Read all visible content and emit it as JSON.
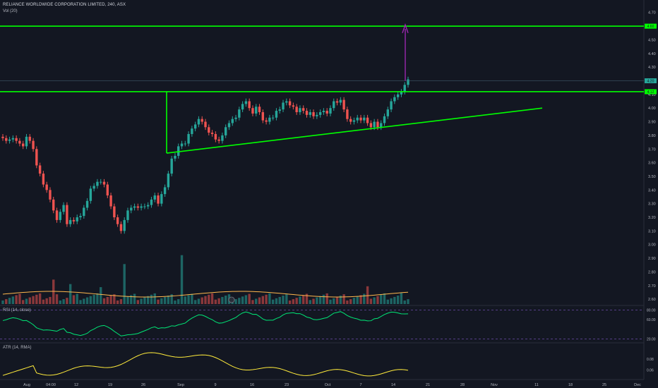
{
  "header": {
    "title": "RELIANCE WORLDWIDE CORPORATION LIMITED, 240, ASX",
    "indicator_vol": "Vol (20)",
    "indicator_rsi": "RSI (14, close)",
    "indicator_atr": "ATR (14, RMA)"
  },
  "colors": {
    "background": "#131722",
    "up": "#26a69a",
    "down": "#ef5350",
    "trendline": "#00ff00",
    "arrow": "#9c27b0",
    "rsi": "#00e676",
    "atr": "#ffeb3b",
    "vol_ma": "#ffb74d"
  },
  "chart_data": {
    "type": "candlestick",
    "y_axis_ticks": [
      "4.70",
      "4.50",
      "4.40",
      "4.30",
      "4.20",
      "4.10",
      "4.00",
      "3.90",
      "3.80",
      "3.70",
      "3.60",
      "3.50",
      "3.40",
      "3.30",
      "3.20",
      "3.10",
      "3.00",
      "2.90",
      "2.80",
      "2.70",
      "2.60"
    ],
    "price_badges": [
      "4.60",
      "4.20",
      "4.12"
    ],
    "ylim": [
      2.58,
      4.74
    ],
    "x_ticks": [
      "Aug",
      "04:00",
      "12",
      "19",
      "26",
      "Sep",
      "9",
      "16",
      "23",
      "Oct",
      "7",
      "14",
      "21",
      "28",
      "Nov",
      "11",
      "18",
      "25",
      "Dec"
    ],
    "close_prices": [
      3.78,
      3.76,
      3.77,
      3.78,
      3.76,
      3.74,
      3.72,
      3.79,
      3.76,
      3.7,
      3.58,
      3.52,
      3.44,
      3.4,
      3.33,
      3.25,
      3.18,
      3.24,
      3.29,
      3.15,
      3.18,
      3.17,
      3.2,
      3.21,
      3.27,
      3.32,
      3.41,
      3.43,
      3.46,
      3.46,
      3.44,
      3.36,
      3.28,
      3.2,
      3.15,
      3.1,
      3.18,
      3.25,
      3.27,
      3.28,
      3.27,
      3.28,
      3.28,
      3.29,
      3.33,
      3.36,
      3.3,
      3.37,
      3.42,
      3.52,
      3.63,
      3.65,
      3.72,
      3.74,
      3.74,
      3.81,
      3.85,
      3.88,
      3.92,
      3.9,
      3.86,
      3.82,
      3.81,
      3.77,
      3.76,
      3.8,
      3.86,
      3.89,
      3.92,
      3.93,
      3.99,
      4.03,
      4.05,
      4.0,
      3.96,
      4.01,
      3.97,
      3.91,
      3.9,
      3.93,
      3.93,
      3.98,
      3.99,
      4.04,
      4.05,
      4.02,
      4.01,
      3.97,
      4.0,
      3.98,
      3.95,
      3.97,
      3.94,
      3.95,
      3.97,
      3.98,
      3.96,
      4.0,
      4.05,
      4.04,
      4.06,
      3.99,
      3.92,
      3.9,
      3.91,
      3.93,
      3.91,
      3.93,
      3.89,
      3.86,
      3.9,
      3.86,
      3.89,
      3.94,
      3.99,
      4.05,
      4.08,
      4.1,
      4.12,
      4.17,
      4.21
    ],
    "rsi": {
      "ticks": [
        "80.00",
        "60.00",
        "20.00"
      ],
      "ylim": [
        15,
        85
      ]
    },
    "atr": {
      "ticks": [
        "0.08",
        "0.06"
      ],
      "ylim": [
        0.045,
        0.105
      ]
    }
  }
}
